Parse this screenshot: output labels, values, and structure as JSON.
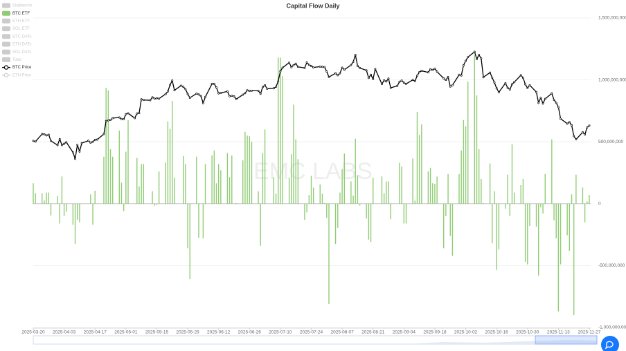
{
  "chart_data": {
    "type": "bar",
    "title": "Capital Flow Daily",
    "watermark": "EMC LABS",
    "xlim": [
      "2025-03-20",
      "2025-11-27"
    ],
    "xticks": [
      "2025-03-20",
      "2025-04-03",
      "2025-04-17",
      "2025-05-01",
      "2025-05-15",
      "2025-05-29",
      "2025-06-12",
      "2025-06-26",
      "2025-07-10",
      "2025-07-24",
      "2025-08-07",
      "2025-08-21",
      "2025-09-04",
      "2025-09-18",
      "2025-10-02",
      "2025-10-16",
      "2025-10-30",
      "2025-11-13",
      "2025-11-27"
    ],
    "ylim": [
      -1000000000,
      1500000000
    ],
    "yticks": [
      {
        "value": -1000000000,
        "label": "-1,000,000,000"
      },
      {
        "value": -500000000,
        "label": "-500,000,000"
      },
      0,
      {
        "value": 500000000,
        "label": "500,000,000"
      },
      {
        "value": 1000000000,
        "label": "1,000,000,000"
      },
      {
        "value": 1500000000,
        "label": "1,500,000,000"
      }
    ],
    "y2lim": [
      0,
      140000
    ],
    "grid": true,
    "legend": "top-left",
    "x": [
      "2025-03-20",
      "2025-03-21",
      "2025-03-24",
      "2025-03-25",
      "2025-03-26",
      "2025-03-27",
      "2025-03-28",
      "2025-03-31",
      "2025-04-01",
      "2025-04-02",
      "2025-04-03",
      "2025-04-04",
      "2025-04-07",
      "2025-04-08",
      "2025-04-09",
      "2025-04-10",
      "2025-04-11",
      "2025-04-14",
      "2025-04-15",
      "2025-04-16",
      "2025-04-17",
      "2025-04-18",
      "2025-04-21",
      "2025-04-22",
      "2025-04-23",
      "2025-04-24",
      "2025-04-25",
      "2025-04-28",
      "2025-04-29",
      "2025-04-30",
      "2025-05-01",
      "2025-05-02",
      "2025-05-05",
      "2025-05-06",
      "2025-05-07",
      "2025-05-08",
      "2025-05-09",
      "2025-05-12",
      "2025-05-13",
      "2025-05-14",
      "2025-05-15",
      "2025-05-16",
      "2025-05-19",
      "2025-05-20",
      "2025-05-21",
      "2025-05-22",
      "2025-05-23",
      "2025-05-26",
      "2025-05-27",
      "2025-05-28",
      "2025-05-29",
      "2025-05-30",
      "2025-06-02",
      "2025-06-03",
      "2025-06-04",
      "2025-06-05",
      "2025-06-06",
      "2025-06-09",
      "2025-06-10",
      "2025-06-11",
      "2025-06-12",
      "2025-06-13",
      "2025-06-16",
      "2025-06-17",
      "2025-06-18",
      "2025-06-19",
      "2025-06-20",
      "2025-06-23",
      "2025-06-24",
      "2025-06-25",
      "2025-06-26",
      "2025-06-27",
      "2025-06-30",
      "2025-07-01",
      "2025-07-02",
      "2025-07-03",
      "2025-07-04",
      "2025-07-07",
      "2025-07-08",
      "2025-07-09",
      "2025-07-10",
      "2025-07-11",
      "2025-07-14",
      "2025-07-15",
      "2025-07-16",
      "2025-07-17",
      "2025-07-18",
      "2025-07-21",
      "2025-07-22",
      "2025-07-23",
      "2025-07-24",
      "2025-07-25",
      "2025-07-28",
      "2025-07-29",
      "2025-07-30",
      "2025-07-31",
      "2025-08-01",
      "2025-08-04",
      "2025-08-05",
      "2025-08-06",
      "2025-08-07",
      "2025-08-08",
      "2025-08-11",
      "2025-08-12",
      "2025-08-13",
      "2025-08-14",
      "2025-08-15",
      "2025-08-18",
      "2025-08-19",
      "2025-08-20",
      "2025-08-21",
      "2025-08-22",
      "2025-08-25",
      "2025-08-26",
      "2025-08-27",
      "2025-08-28",
      "2025-08-29",
      "2025-09-01",
      "2025-09-02",
      "2025-09-03",
      "2025-09-04",
      "2025-09-05",
      "2025-09-08",
      "2025-09-09",
      "2025-09-10",
      "2025-09-11",
      "2025-09-12",
      "2025-09-15",
      "2025-09-16",
      "2025-09-17",
      "2025-09-18",
      "2025-09-19",
      "2025-09-22",
      "2025-09-23",
      "2025-09-24",
      "2025-09-25",
      "2025-09-26",
      "2025-09-29",
      "2025-09-30",
      "2025-10-01",
      "2025-10-02",
      "2025-10-03",
      "2025-10-06",
      "2025-10-07",
      "2025-10-08",
      "2025-10-09",
      "2025-10-10",
      "2025-10-13",
      "2025-10-14",
      "2025-10-15",
      "2025-10-16",
      "2025-10-17",
      "2025-10-20",
      "2025-10-21",
      "2025-10-22",
      "2025-10-23",
      "2025-10-24",
      "2025-10-27",
      "2025-10-28",
      "2025-10-29",
      "2025-10-30",
      "2025-10-31",
      "2025-11-03",
      "2025-11-04",
      "2025-11-05",
      "2025-11-06",
      "2025-11-07",
      "2025-11-10",
      "2025-11-11",
      "2025-11-12",
      "2025-11-13",
      "2025-11-14",
      "2025-11-17",
      "2025-11-18",
      "2025-11-19",
      "2025-11-20",
      "2025-11-21",
      "2025-11-24",
      "2025-11-25",
      "2025-11-26",
      "2025-11-27"
    ],
    "series": [
      {
        "name": "Stablecoin",
        "type": "bar",
        "hidden": true
      },
      {
        "name": "BTC ETF",
        "type": "bar",
        "color": "#91cc75",
        "values": [
          165000000,
          85000000,
          85000000,
          27000000,
          90000000,
          90000000,
          -95000000,
          60000000,
          -160000000,
          220000000,
          -100000000,
          -65000000,
          -170000000,
          -325000000,
          -130000000,
          -150000000,
          0,
          1000000,
          75000000,
          -170000000,
          105000000,
          0,
          380000000,
          935000000,
          915000000,
          440000000,
          380000000,
          590000000,
          170000000,
          -60000000,
          420000000,
          675000000,
          0,
          370000000,
          140000000,
          320000000,
          320000000,
          0,
          100000000,
          -15000000,
          -10000000,
          260000000,
          330000000,
          665000000,
          605000000,
          830000000,
          210000000,
          0,
          385000000,
          320000000,
          -360000000,
          -610000000,
          380000000,
          -275000000,
          0,
          -280000000,
          320000000,
          390000000,
          430000000,
          165000000,
          320000000,
          270000000,
          410000000,
          215000000,
          390000000,
          0,
          5000000,
          350000000,
          580000000,
          550000000,
          545000000,
          500000000,
          100000000,
          -340000000,
          410000000,
          600000000,
          0,
          215000000,
          80000000,
          1180000000,
          1180000000,
          1030000000,
          210000000,
          400000000,
          800000000,
          520000000,
          360000000,
          -130000000,
          -70000000,
          70000000,
          225000000,
          130000000,
          155000000,
          80000000,
          5000000,
          -115000000,
          -810000000,
          -325000000,
          -195000000,
          90000000,
          280000000,
          405000000,
          180000000,
          65000000,
          525000000,
          230000000,
          -15000000,
          -120000000,
          -290000000,
          -310000000,
          210000000,
          0,
          220000000,
          85000000,
          180000000,
          180000000,
          -125000000,
          0,
          330000000,
          300000000,
          -160000000,
          -160000000,
          365000000,
          25000000,
          740000000,
          555000000,
          640000000,
          260000000,
          290000000,
          165000000,
          160000000,
          220000000,
          -360000000,
          -100000000,
          240000000,
          -260000000,
          -420000000,
          240000000,
          430000000,
          675000000,
          625000000,
          985000000,
          1200000000,
          875000000,
          440000000,
          200000000,
          5000000,
          325000000,
          -320000000,
          100000000,
          -535000000,
          -370000000,
          -40000000,
          235000000,
          -100000000,
          480000000,
          90000000,
          150000000,
          200000000,
          -470000000,
          -490000000,
          -180000000,
          -185000000,
          -580000000,
          -30000000,
          -80000000,
          240000000,
          520000000,
          -135000000,
          -280000000,
          -870000000,
          -490000000,
          -255000000,
          -380000000,
          75000000,
          -900000000,
          235000000,
          130000000,
          -150000000,
          20000000,
          70000000
        ]
      },
      {
        "name": "ETH ETF",
        "type": "bar",
        "hidden": true
      },
      {
        "name": "SOL ETF",
        "type": "bar",
        "hidden": true
      },
      {
        "name": "BTC DATs",
        "type": "bar",
        "hidden": true
      },
      {
        "name": "ETH DATs",
        "type": "bar",
        "hidden": true
      },
      {
        "name": "SOL DATs",
        "type": "bar",
        "hidden": true
      },
      {
        "name": "Total",
        "type": "bar",
        "hidden": true
      },
      {
        "name": "BTC Price",
        "type": "line",
        "axis": "y2",
        "color": "#000000",
        "values": [
          84400,
          84100,
          87500,
          87400,
          86900,
          87200,
          84400,
          82500,
          85200,
          82500,
          83100,
          83800,
          79200,
          76300,
          82600,
          79600,
          83400,
          84500,
          83600,
          84000,
          84900,
          85000,
          87500,
          93400,
          93700,
          93900,
          94700,
          95000,
          94300,
          94200,
          96500,
          96900,
          94700,
          96800,
          97000,
          103200,
          102900,
          102800,
          104100,
          103500,
          103700,
          103500,
          105600,
          106800,
          109700,
          111700,
          107300,
          109400,
          108900,
          107800,
          105600,
          103900,
          105800,
          105400,
          104700,
          101500,
          104300,
          110200,
          110200,
          108600,
          105900,
          106100,
          106800,
          104600,
          104800,
          104600,
          103300,
          105300,
          106000,
          107300,
          107000,
          107100,
          107100,
          105700,
          108800,
          109600,
          108000,
          108200,
          108900,
          111300,
          115900,
          117500,
          119800,
          117700,
          118700,
          119300,
          117900,
          117400,
          119900,
          118800,
          118300,
          117600,
          118000,
          117900,
          117800,
          115800,
          113300,
          115000,
          114100,
          115000,
          117500,
          116600,
          118700,
          120100,
          123300,
          118300,
          117400,
          116300,
          112900,
          114300,
          112400,
          116900,
          110100,
          111800,
          111300,
          112600,
          108400,
          109300,
          111200,
          111700,
          110700,
          110200,
          112000,
          111400,
          113900,
          115500,
          116100,
          115400,
          116800,
          116500,
          117100,
          115700,
          112700,
          112000,
          113300,
          109000,
          109600,
          114300,
          114000,
          118600,
          120600,
          122300,
          124700,
          121400,
          123300,
          121700,
          113200,
          115300,
          113000,
          110800,
          108200,
          106400,
          110500,
          108400,
          107600,
          110000,
          111000,
          114100,
          112900,
          110000,
          108300,
          109600,
          106500,
          101600,
          103900,
          101300,
          103400,
          105900,
          103000,
          101600,
          99700,
          94400,
          92200,
          92900,
          91500,
          86600,
          85100,
          88300,
          87300,
          90500,
          91300
        ]
      },
      {
        "name": "ETH Price",
        "type": "line",
        "hidden": true
      }
    ]
  }
}
